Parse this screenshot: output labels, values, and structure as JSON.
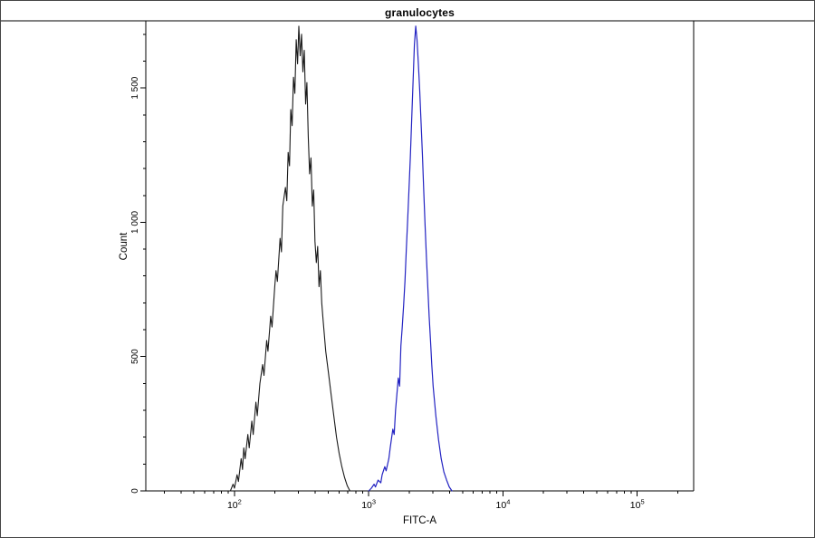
{
  "chart_data": {
    "type": "line",
    "subtype": "flow-cytometry-histogram",
    "title": "granulocytes",
    "xlabel": "FITC-A",
    "ylabel": "Count",
    "x_scale": "log",
    "xlim_log10": [
      1.34,
      5.42
    ],
    "ylim": [
      0,
      1750
    ],
    "grid": false,
    "legend": "none",
    "axis_color": "#000000",
    "y_major_step": 500,
    "y_minor_step": 100,
    "y_major_ticks": [
      {
        "value": 0,
        "label": "0"
      },
      {
        "value": 500,
        "label": "500"
      },
      {
        "value": 1000,
        "label": "1 000"
      },
      {
        "value": 1500,
        "label": "1 500"
      }
    ],
    "x_major_ticks": [
      {
        "log": 2,
        "base": "10",
        "exp": "2"
      },
      {
        "log": 3,
        "base": "10",
        "exp": "3"
      },
      {
        "log": 4,
        "base": "10",
        "exp": "4"
      },
      {
        "log": 5,
        "base": "10",
        "exp": "5"
      }
    ],
    "series": [
      {
        "name": "black-curve",
        "color": "#1a1a1a",
        "width": 1.1,
        "peak_x": 300,
        "peak_count": 1730,
        "points": [
          [
            1.97,
            0
          ],
          [
            1.99,
            25
          ],
          [
            2.0,
            10
          ],
          [
            2.02,
            60
          ],
          [
            2.03,
            35
          ],
          [
            2.05,
            120
          ],
          [
            2.06,
            80
          ],
          [
            2.07,
            160
          ],
          [
            2.08,
            120
          ],
          [
            2.1,
            210
          ],
          [
            2.11,
            160
          ],
          [
            2.13,
            260
          ],
          [
            2.14,
            210
          ],
          [
            2.16,
            330
          ],
          [
            2.17,
            280
          ],
          [
            2.19,
            400
          ],
          [
            2.21,
            470
          ],
          [
            2.22,
            430
          ],
          [
            2.24,
            560
          ],
          [
            2.25,
            520
          ],
          [
            2.27,
            650
          ],
          [
            2.28,
            610
          ],
          [
            2.3,
            760
          ],
          [
            2.31,
            820
          ],
          [
            2.32,
            780
          ],
          [
            2.34,
            940
          ],
          [
            2.35,
            890
          ],
          [
            2.36,
            1060
          ],
          [
            2.38,
            1130
          ],
          [
            2.39,
            1080
          ],
          [
            2.4,
            1260
          ],
          [
            2.41,
            1210
          ],
          [
            2.42,
            1420
          ],
          [
            2.43,
            1360
          ],
          [
            2.44,
            1540
          ],
          [
            2.45,
            1480
          ],
          [
            2.46,
            1680
          ],
          [
            2.47,
            1590
          ],
          [
            2.48,
            1730
          ],
          [
            2.49,
            1620
          ],
          [
            2.5,
            1700
          ],
          [
            2.51,
            1560
          ],
          [
            2.52,
            1640
          ],
          [
            2.53,
            1440
          ],
          [
            2.54,
            1520
          ],
          [
            2.55,
            1320
          ],
          [
            2.56,
            1180
          ],
          [
            2.57,
            1240
          ],
          [
            2.58,
            1060
          ],
          [
            2.59,
            1120
          ],
          [
            2.6,
            930
          ],
          [
            2.61,
            850
          ],
          [
            2.62,
            910
          ],
          [
            2.63,
            760
          ],
          [
            2.64,
            820
          ],
          [
            2.65,
            700
          ],
          [
            2.66,
            640
          ],
          [
            2.67,
            580
          ],
          [
            2.68,
            520
          ],
          [
            2.7,
            440
          ],
          [
            2.72,
            360
          ],
          [
            2.74,
            280
          ],
          [
            2.76,
            200
          ],
          [
            2.78,
            140
          ],
          [
            2.8,
            90
          ],
          [
            2.82,
            50
          ],
          [
            2.84,
            20
          ],
          [
            2.86,
            0
          ]
        ]
      },
      {
        "name": "blue-curve",
        "color": "#2323c2",
        "width": 1.2,
        "peak_x": 2200,
        "peak_count": 1730,
        "points": [
          [
            3.0,
            0
          ],
          [
            3.02,
            10
          ],
          [
            3.04,
            25
          ],
          [
            3.05,
            15
          ],
          [
            3.07,
            40
          ],
          [
            3.09,
            30
          ],
          [
            3.1,
            60
          ],
          [
            3.12,
            90
          ],
          [
            3.13,
            75
          ],
          [
            3.15,
            120
          ],
          [
            3.16,
            160
          ],
          [
            3.18,
            230
          ],
          [
            3.19,
            210
          ],
          [
            3.2,
            300
          ],
          [
            3.22,
            420
          ],
          [
            3.23,
            390
          ],
          [
            3.24,
            540
          ],
          [
            3.25,
            610
          ],
          [
            3.26,
            690
          ],
          [
            3.27,
            780
          ],
          [
            3.28,
            900
          ],
          [
            3.29,
            1010
          ],
          [
            3.3,
            1120
          ],
          [
            3.31,
            1240
          ],
          [
            3.32,
            1380
          ],
          [
            3.33,
            1520
          ],
          [
            3.34,
            1660
          ],
          [
            3.35,
            1730
          ],
          [
            3.36,
            1680
          ],
          [
            3.37,
            1590
          ],
          [
            3.38,
            1490
          ],
          [
            3.39,
            1370
          ],
          [
            3.4,
            1250
          ],
          [
            3.41,
            1120
          ],
          [
            3.42,
            990
          ],
          [
            3.43,
            870
          ],
          [
            3.44,
            760
          ],
          [
            3.45,
            650
          ],
          [
            3.46,
            560
          ],
          [
            3.47,
            470
          ],
          [
            3.48,
            390
          ],
          [
            3.5,
            280
          ],
          [
            3.52,
            190
          ],
          [
            3.54,
            120
          ],
          [
            3.56,
            70
          ],
          [
            3.58,
            40
          ],
          [
            3.6,
            15
          ],
          [
            3.62,
            0
          ]
        ]
      }
    ]
  }
}
